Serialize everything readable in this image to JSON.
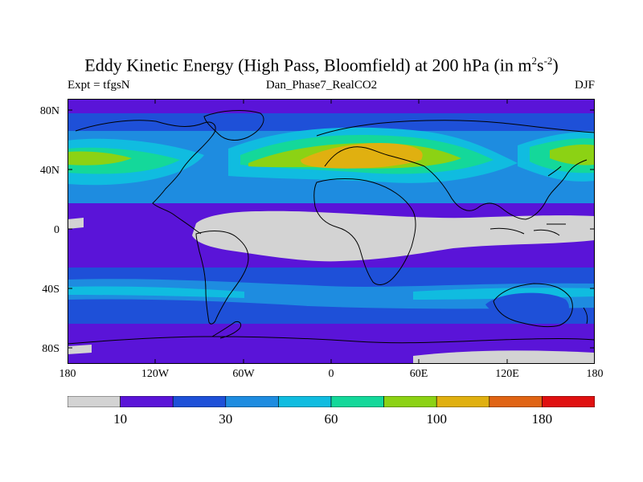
{
  "header": {
    "title_main": "Eddy Kinetic Energy (High Pass, Bloomfield) at 200 hPa (in m",
    "title_sup1": "2",
    "title_mid": "s",
    "title_sup2": "-2",
    "title_end": ")",
    "left_label": "Expt = tfgsN",
    "center_label": "Dan_Phase7_RealCO2",
    "right_label": "DJF"
  },
  "axes": {
    "x_ticks": [
      "180",
      "120W",
      "60W",
      "0",
      "60E",
      "120E",
      "180"
    ],
    "y_ticks": [
      "80N",
      "40N",
      "0",
      "40S",
      "80S"
    ]
  },
  "colorbar": {
    "colors": [
      "#d3d3d3",
      "#5a14d8",
      "#1e50d8",
      "#1e8ce0",
      "#10bce0",
      "#14d89a",
      "#8cd214",
      "#e0b010",
      "#e06414",
      "#e01010"
    ],
    "labels": [
      "10",
      "30",
      "60",
      "100",
      "180"
    ]
  }
}
